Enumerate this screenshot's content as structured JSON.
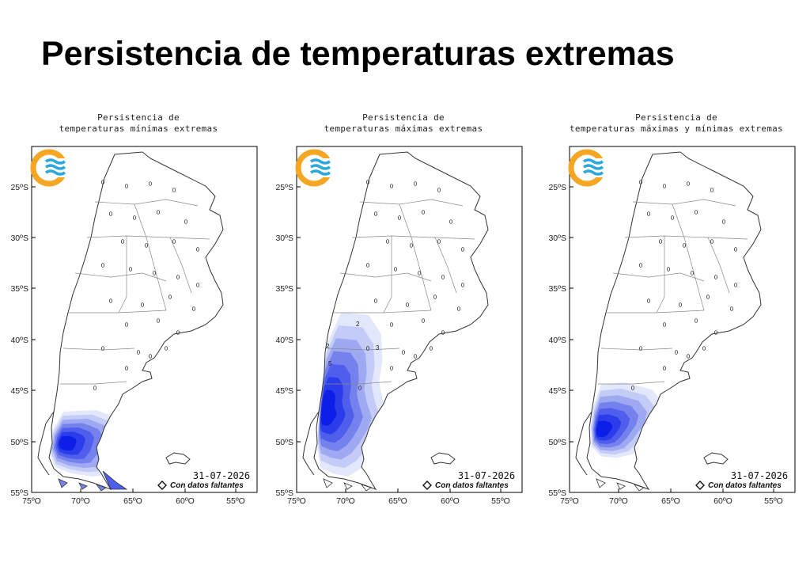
{
  "title": "Persistencia de temperaturas extremas",
  "colors": {
    "outline": "#333333",
    "province_border": "#888888",
    "logo_orange": "#f5a623",
    "logo_blue": "#2aa7df",
    "shade_levels": [
      "#e3e7fb",
      "#c3cbf7",
      "#9ea9f2",
      "#7582ee",
      "#4f5fec",
      "#2b3cea",
      "#0d1ee6"
    ]
  },
  "axes": {
    "lat_ticks": [
      "25ºS",
      "30ºS",
      "35ºS",
      "40ºS",
      "45ºS",
      "50ºS",
      "55ºS"
    ],
    "lon_ticks": [
      "75ºO",
      "70ºO",
      "65ºO",
      "60ºO",
      "55ºO"
    ]
  },
  "panels": [
    {
      "title_line1": "Persistencia de",
      "title_line2": "temperaturas mínimas extremas",
      "date": "31-07-2026",
      "missing_label": "Con datos faltantes",
      "icons": [
        "smn-logo-icon",
        "missing-data-diamond-icon",
        "malvinas-islands-icon"
      ]
    },
    {
      "title_line1": "Persistencia de",
      "title_line2": "temperaturas máximas extremas",
      "date": "31-07-2026",
      "missing_label": "Con datos faltantes",
      "contour_labels": [
        "2",
        "2",
        "3",
        "5"
      ],
      "icons": [
        "smn-logo-icon",
        "missing-data-diamond-icon",
        "malvinas-islands-icon"
      ]
    },
    {
      "title_line1": "Persistencia de",
      "title_line2": "temperaturas máximas y mínimas extremas",
      "date": "31-07-2026",
      "missing_label": "Con datos faltantes",
      "icons": [
        "smn-logo-icon",
        "missing-data-diamond-icon",
        "malvinas-islands-icon"
      ]
    }
  ]
}
